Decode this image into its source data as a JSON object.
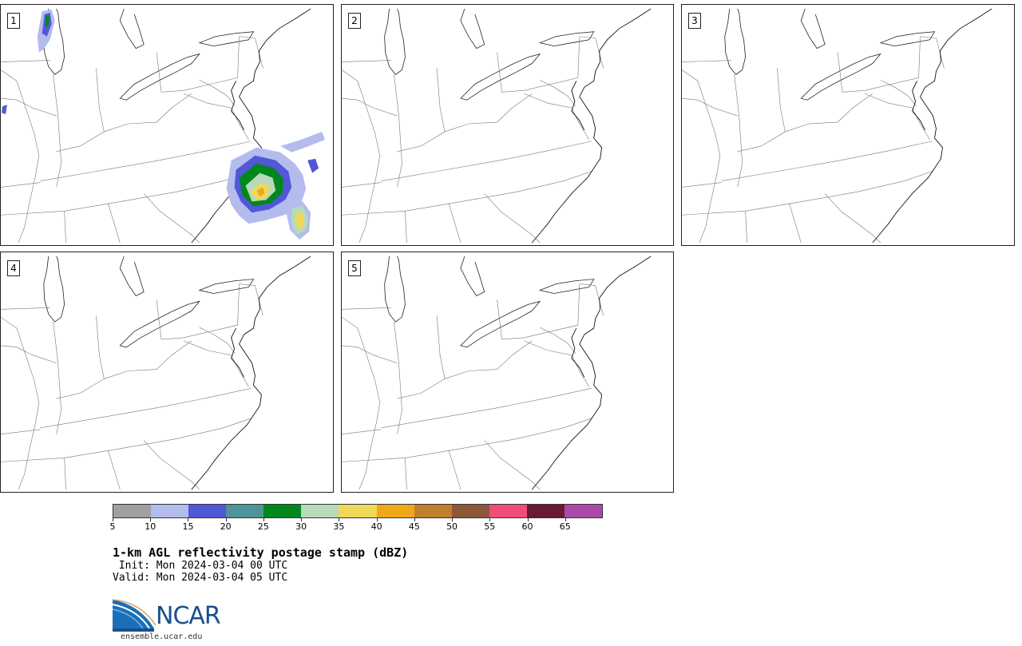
{
  "panels": [
    {
      "label": "1",
      "has_precip": true
    },
    {
      "label": "2",
      "has_precip": false
    },
    {
      "label": "3",
      "has_precip": false
    },
    {
      "label": "4",
      "has_precip": false
    },
    {
      "label": "5",
      "has_precip": false
    }
  ],
  "colorbar": {
    "colors": [
      "#a0a0a0",
      "#b4bcee",
      "#5058d8",
      "#4e9498",
      "#00881c",
      "#b8dab8",
      "#f0d858",
      "#f0a818",
      "#c08030",
      "#8c5838",
      "#f04e78",
      "#6a1838",
      "#aa4aa8"
    ],
    "ticks": [
      "5",
      "10",
      "15",
      "20",
      "25",
      "30",
      "35",
      "40",
      "45",
      "50",
      "55",
      "60",
      "65"
    ],
    "unit_range": [
      5,
      70
    ]
  },
  "title": "1-km AGL reflectivity postage stamp (dBZ)",
  "init": " Init: Mon 2024-03-04 00 UTC",
  "valid": "Valid: Mon 2024-03-04 05 UTC",
  "logo": {
    "name": "NCAR",
    "url": "ensemble.ucar.edu"
  }
}
